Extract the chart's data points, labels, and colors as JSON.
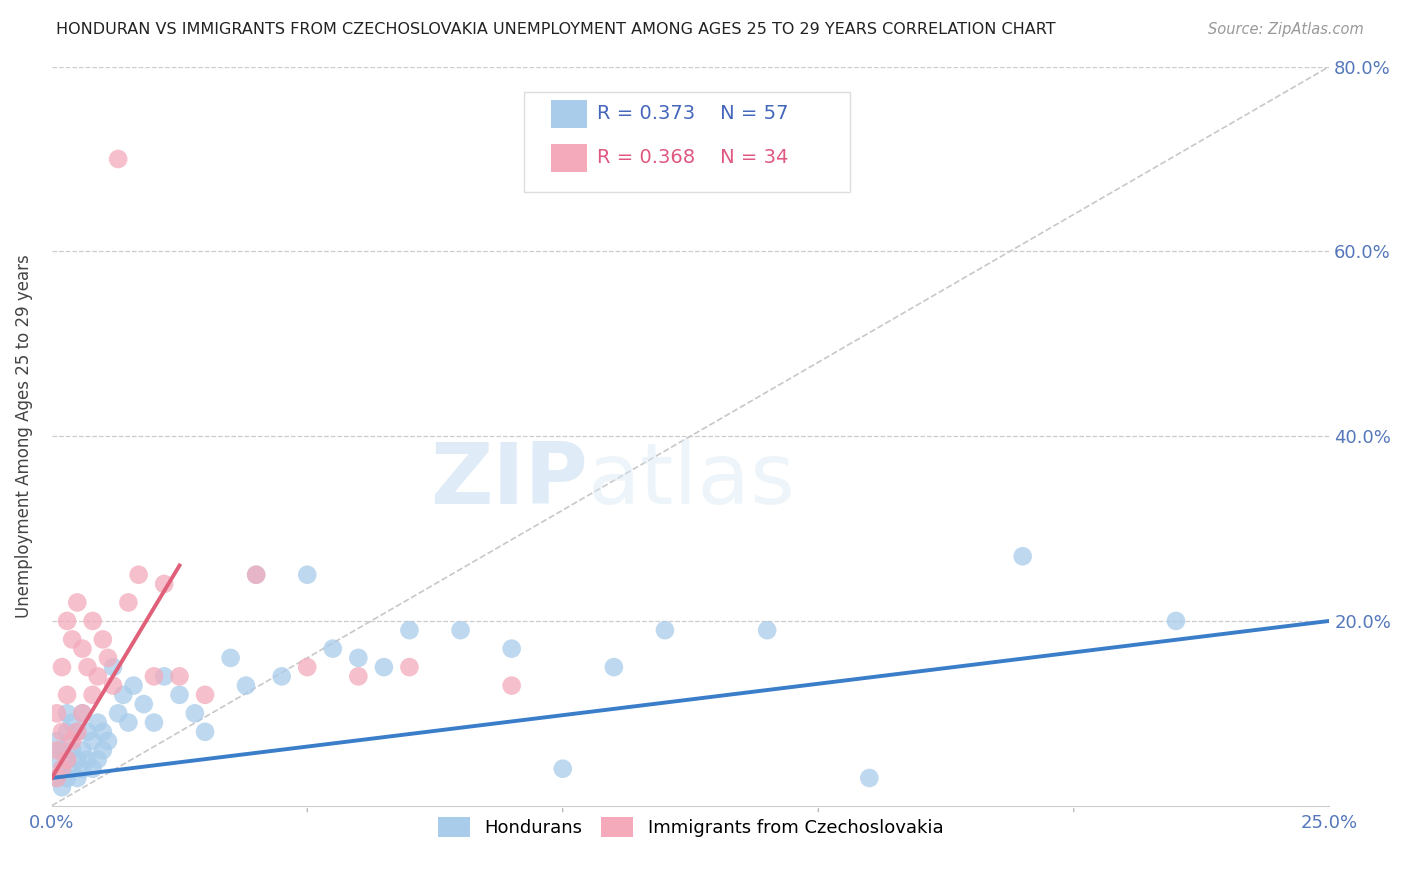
{
  "title": "HONDURAN VS IMMIGRANTS FROM CZECHOSLOVAKIA UNEMPLOYMENT AMONG AGES 25 TO 29 YEARS CORRELATION CHART",
  "source": "Source: ZipAtlas.com",
  "ylabel": "Unemployment Among Ages 25 to 29 years",
  "xlim": [
    0,
    0.25
  ],
  "ylim": [
    0,
    0.8
  ],
  "xticks": [
    0.0,
    0.05,
    0.1,
    0.15,
    0.2,
    0.25
  ],
  "yticks": [
    0.0,
    0.2,
    0.4,
    0.6,
    0.8
  ],
  "blue_color": "#A8CCEA",
  "pink_color": "#F4AABB",
  "trend_blue": "#3A7DC9",
  "trend_pink": "#E0607A",
  "diagonal_color": "#C8C8C8",
  "watermark_zip": "ZIP",
  "watermark_atlas": "atlas",
  "background": "#FFFFFF",
  "hondurans_x": [
    0.001,
    0.001,
    0.001,
    0.002,
    0.002,
    0.002,
    0.003,
    0.003,
    0.003,
    0.003,
    0.004,
    0.004,
    0.004,
    0.005,
    0.005,
    0.005,
    0.006,
    0.006,
    0.006,
    0.007,
    0.007,
    0.008,
    0.008,
    0.009,
    0.009,
    0.01,
    0.01,
    0.011,
    0.012,
    0.013,
    0.014,
    0.015,
    0.016,
    0.018,
    0.02,
    0.022,
    0.025,
    0.028,
    0.03,
    0.035,
    0.038,
    0.04,
    0.045,
    0.05,
    0.055,
    0.06,
    0.065,
    0.07,
    0.08,
    0.09,
    0.1,
    0.11,
    0.12,
    0.14,
    0.16,
    0.19,
    0.22
  ],
  "hondurans_y": [
    0.03,
    0.05,
    0.07,
    0.02,
    0.04,
    0.06,
    0.03,
    0.05,
    0.08,
    0.1,
    0.04,
    0.06,
    0.09,
    0.03,
    0.05,
    0.08,
    0.04,
    0.06,
    0.1,
    0.05,
    0.08,
    0.04,
    0.07,
    0.05,
    0.09,
    0.06,
    0.08,
    0.07,
    0.15,
    0.1,
    0.12,
    0.09,
    0.13,
    0.11,
    0.09,
    0.14,
    0.12,
    0.1,
    0.08,
    0.16,
    0.13,
    0.25,
    0.14,
    0.25,
    0.17,
    0.16,
    0.15,
    0.19,
    0.19,
    0.17,
    0.04,
    0.15,
    0.19,
    0.19,
    0.03,
    0.27,
    0.2
  ],
  "czecho_x": [
    0.001,
    0.001,
    0.001,
    0.002,
    0.002,
    0.002,
    0.003,
    0.003,
    0.003,
    0.004,
    0.004,
    0.005,
    0.005,
    0.006,
    0.006,
    0.007,
    0.008,
    0.008,
    0.009,
    0.01,
    0.011,
    0.012,
    0.013,
    0.015,
    0.017,
    0.02,
    0.022,
    0.025,
    0.03,
    0.04,
    0.05,
    0.06,
    0.07,
    0.09
  ],
  "czecho_y": [
    0.03,
    0.06,
    0.1,
    0.04,
    0.08,
    0.15,
    0.05,
    0.12,
    0.2,
    0.07,
    0.18,
    0.08,
    0.22,
    0.1,
    0.17,
    0.15,
    0.12,
    0.2,
    0.14,
    0.18,
    0.16,
    0.13,
    0.7,
    0.22,
    0.25,
    0.14,
    0.24,
    0.14,
    0.12,
    0.25,
    0.15,
    0.14,
    0.15,
    0.13
  ]
}
